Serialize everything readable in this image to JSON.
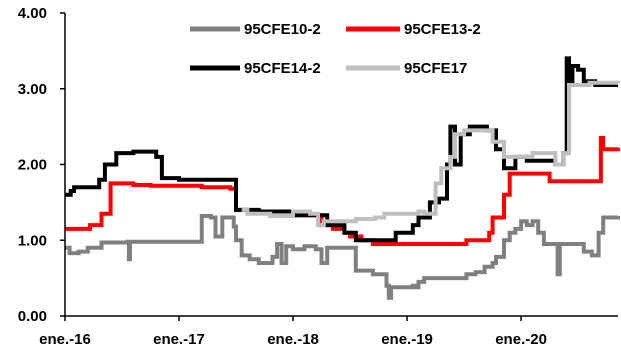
{
  "chart_data": {
    "type": "line",
    "title": "",
    "xlabel": "",
    "ylabel": "",
    "ylim": [
      0,
      4
    ],
    "xlim": [
      2016.0,
      2020.85
    ],
    "yticks": [
      {
        "value": 0,
        "label": "0.00"
      },
      {
        "value": 1,
        "label": "1.00"
      },
      {
        "value": 2,
        "label": "2.00"
      },
      {
        "value": 3,
        "label": "3.00"
      },
      {
        "value": 4,
        "label": "4.00"
      }
    ],
    "xticks": [
      {
        "value": 2016,
        "label": "ene.-16"
      },
      {
        "value": 2017,
        "label": "ene.-17"
      },
      {
        "value": 2018,
        "label": "ene.-18"
      },
      {
        "value": 2019,
        "label": "ene.-19"
      },
      {
        "value": 2020,
        "label": "ene.-20"
      }
    ],
    "grid": false,
    "legend_position": "top",
    "series": [
      {
        "name": "95CFE10-2",
        "color": "#808080",
        "points": [
          [
            2016.0,
            0.9
          ],
          [
            2016.04,
            0.83
          ],
          [
            2016.12,
            0.85
          ],
          [
            2016.2,
            0.9
          ],
          [
            2016.32,
            0.97
          ],
          [
            2016.55,
            0.98
          ],
          [
            2016.56,
            0.75
          ],
          [
            2016.57,
            0.98
          ],
          [
            2017.1,
            0.98
          ],
          [
            2017.15,
            0.98
          ],
          [
            2017.2,
            1.32
          ],
          [
            2017.28,
            1.3
          ],
          [
            2017.32,
            1.05
          ],
          [
            2017.38,
            1.3
          ],
          [
            2017.48,
            1.18
          ],
          [
            2017.5,
            1.0
          ],
          [
            2017.55,
            0.8
          ],
          [
            2017.62,
            0.75
          ],
          [
            2017.7,
            0.7
          ],
          [
            2017.82,
            0.78
          ],
          [
            2017.86,
            0.95
          ],
          [
            2017.9,
            0.7
          ],
          [
            2017.94,
            0.92
          ],
          [
            2018.0,
            0.88
          ],
          [
            2018.1,
            0.92
          ],
          [
            2018.2,
            0.88
          ],
          [
            2018.25,
            0.7
          ],
          [
            2018.3,
            0.9
          ],
          [
            2018.45,
            0.9
          ],
          [
            2018.55,
            0.6
          ],
          [
            2018.7,
            0.55
          ],
          [
            2018.82,
            0.4
          ],
          [
            2018.84,
            0.24
          ],
          [
            2018.86,
            0.38
          ],
          [
            2019.05,
            0.4
          ],
          [
            2019.08,
            0.38
          ],
          [
            2019.1,
            0.45
          ],
          [
            2019.15,
            0.5
          ],
          [
            2019.5,
            0.5
          ],
          [
            2019.52,
            0.55
          ],
          [
            2019.6,
            0.58
          ],
          [
            2019.68,
            0.65
          ],
          [
            2019.75,
            0.7
          ],
          [
            2019.78,
            0.78
          ],
          [
            2019.85,
            1.0
          ],
          [
            2019.9,
            1.1
          ],
          [
            2019.95,
            1.15
          ],
          [
            2020.0,
            1.25
          ],
          [
            2020.05,
            1.2
          ],
          [
            2020.1,
            1.25
          ],
          [
            2020.15,
            1.1
          ],
          [
            2020.2,
            0.95
          ],
          [
            2020.3,
            0.95
          ],
          [
            2020.32,
            0.55
          ],
          [
            2020.34,
            0.95
          ],
          [
            2020.4,
            0.95
          ],
          [
            2020.5,
            0.95
          ],
          [
            2020.55,
            0.85
          ],
          [
            2020.62,
            0.8
          ],
          [
            2020.68,
            1.1
          ],
          [
            2020.72,
            1.3
          ],
          [
            2020.85,
            1.32
          ]
        ]
      },
      {
        "name": "95CFE13-2",
        "color": "#ff0000",
        "points": [
          [
            2016.0,
            1.15
          ],
          [
            2016.2,
            1.15
          ],
          [
            2016.22,
            1.2
          ],
          [
            2016.32,
            1.35
          ],
          [
            2016.4,
            1.75
          ],
          [
            2016.6,
            1.73
          ],
          [
            2016.75,
            1.72
          ],
          [
            2017.2,
            1.7
          ],
          [
            2017.45,
            1.68
          ],
          [
            2017.5,
            1.4
          ],
          [
            2017.6,
            1.38
          ],
          [
            2018.0,
            1.33
          ],
          [
            2018.2,
            1.33
          ],
          [
            2018.25,
            1.2
          ],
          [
            2018.35,
            1.15
          ],
          [
            2018.45,
            1.1
          ],
          [
            2018.5,
            1.05
          ],
          [
            2018.6,
            1.0
          ],
          [
            2018.7,
            0.95
          ],
          [
            2019.15,
            0.95
          ],
          [
            2019.5,
            0.95
          ],
          [
            2019.52,
            1.0
          ],
          [
            2019.72,
            1.1
          ],
          [
            2019.75,
            1.3
          ],
          [
            2019.8,
            1.3
          ],
          [
            2019.85,
            1.6
          ],
          [
            2019.9,
            1.88
          ],
          [
            2020.2,
            1.88
          ],
          [
            2020.25,
            1.78
          ],
          [
            2020.5,
            1.78
          ],
          [
            2020.62,
            1.78
          ],
          [
            2020.7,
            2.35
          ],
          [
            2020.72,
            2.2
          ],
          [
            2020.85,
            2.22
          ]
        ]
      },
      {
        "name": "95CFE14-2",
        "color": "#000000",
        "points": [
          [
            2016.0,
            1.6
          ],
          [
            2016.05,
            1.65
          ],
          [
            2016.08,
            1.7
          ],
          [
            2016.25,
            1.7
          ],
          [
            2016.3,
            1.8
          ],
          [
            2016.35,
            2.0
          ],
          [
            2016.45,
            2.15
          ],
          [
            2016.6,
            2.17
          ],
          [
            2016.75,
            2.17
          ],
          [
            2016.8,
            2.1
          ],
          [
            2016.85,
            1.82
          ],
          [
            2017.0,
            1.8
          ],
          [
            2017.48,
            1.8
          ],
          [
            2017.5,
            1.4
          ],
          [
            2017.7,
            1.38
          ],
          [
            2018.0,
            1.33
          ],
          [
            2018.2,
            1.33
          ],
          [
            2018.3,
            1.2
          ],
          [
            2018.45,
            1.1
          ],
          [
            2018.55,
            1.0
          ],
          [
            2018.7,
            1.0
          ],
          [
            2018.9,
            1.1
          ],
          [
            2019.05,
            1.2
          ],
          [
            2019.1,
            1.3
          ],
          [
            2019.2,
            1.5
          ],
          [
            2019.28,
            1.55
          ],
          [
            2019.35,
            2.0
          ],
          [
            2019.38,
            2.5
          ],
          [
            2019.42,
            2.0
          ],
          [
            2019.47,
            2.4
          ],
          [
            2019.55,
            2.5
          ],
          [
            2019.7,
            2.45
          ],
          [
            2019.78,
            2.2
          ],
          [
            2019.85,
            1.95
          ],
          [
            2019.95,
            2.1
          ],
          [
            2020.05,
            2.05
          ],
          [
            2020.2,
            2.05
          ],
          [
            2020.3,
            2.0
          ],
          [
            2020.37,
            2.15
          ],
          [
            2020.4,
            3.4
          ],
          [
            2020.42,
            3.1
          ],
          [
            2020.45,
            3.3
          ],
          [
            2020.5,
            3.25
          ],
          [
            2020.55,
            3.1
          ],
          [
            2020.65,
            3.05
          ],
          [
            2020.85,
            3.05
          ]
        ]
      },
      {
        "name": "95CFE17",
        "color": "#bfbfbf",
        "points": [
          [
            2017.55,
            1.4
          ],
          [
            2017.6,
            1.35
          ],
          [
            2017.8,
            1.32
          ],
          [
            2018.0,
            1.38
          ],
          [
            2018.15,
            1.35
          ],
          [
            2018.22,
            1.2
          ],
          [
            2018.27,
            1.25
          ],
          [
            2018.4,
            1.25
          ],
          [
            2018.55,
            1.28
          ],
          [
            2018.72,
            1.3
          ],
          [
            2018.8,
            1.35
          ],
          [
            2018.9,
            1.35
          ],
          [
            2019.1,
            1.38
          ],
          [
            2019.15,
            1.35
          ],
          [
            2019.25,
            1.75
          ],
          [
            2019.3,
            1.95
          ],
          [
            2019.38,
            2.1
          ],
          [
            2019.42,
            2.4
          ],
          [
            2019.5,
            2.45
          ],
          [
            2019.7,
            2.45
          ],
          [
            2019.75,
            2.3
          ],
          [
            2019.85,
            2.1
          ],
          [
            2020.0,
            2.1
          ],
          [
            2020.1,
            2.15
          ],
          [
            2020.2,
            2.15
          ],
          [
            2020.3,
            2.0
          ],
          [
            2020.37,
            2.15
          ],
          [
            2020.42,
            3.05
          ],
          [
            2020.6,
            3.08
          ],
          [
            2020.85,
            3.07
          ]
        ]
      }
    ]
  }
}
